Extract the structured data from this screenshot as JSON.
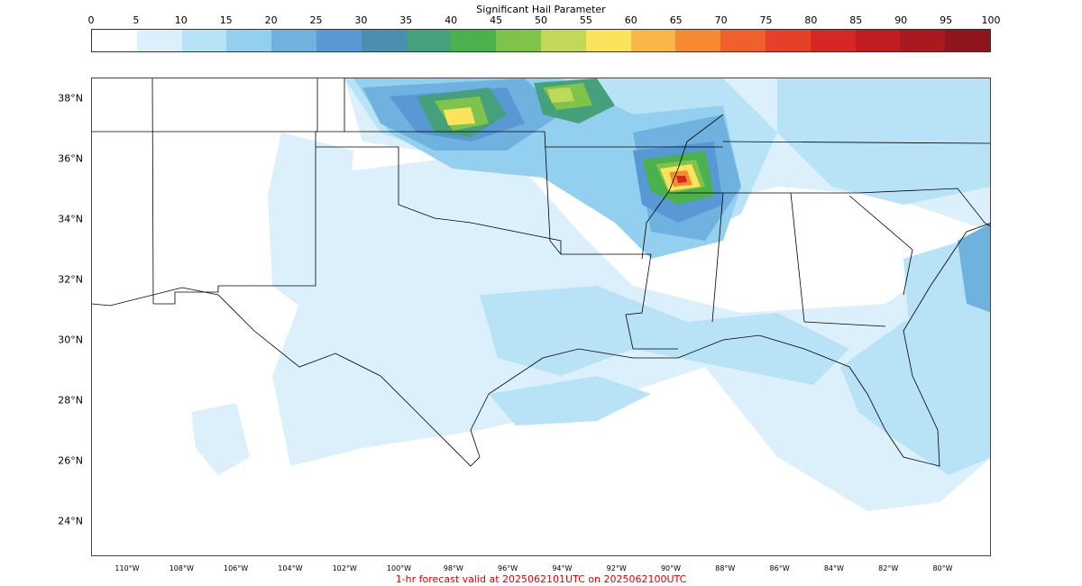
{
  "colorbar": {
    "title": "Significant Hail Parameter",
    "ticks": [
      "0",
      "5",
      "10",
      "15",
      "20",
      "25",
      "30",
      "35",
      "40",
      "45",
      "50",
      "55",
      "60",
      "65",
      "70",
      "75",
      "80",
      "85",
      "90",
      "95",
      "100"
    ],
    "colors": [
      "#ffffff",
      "#dcf0fb",
      "#b8e2f6",
      "#93d0f0",
      "#6fb2e0",
      "#5898d4",
      "#4a8fb0",
      "#45a07c",
      "#49b24c",
      "#80c34a",
      "#c2d858",
      "#fbe45c",
      "#f9b649",
      "#f68a33",
      "#f0602c",
      "#e54028",
      "#d62626",
      "#c01d23",
      "#a81a20",
      "#8e151b"
    ]
  },
  "map": {
    "lat_labels": [
      "38°N",
      "36°N",
      "34°N",
      "32°N",
      "30°N",
      "28°N",
      "26°N",
      "24°N"
    ],
    "lon_labels": [
      "110°W",
      "108°W",
      "106°W",
      "104°W",
      "102°W",
      "100°W",
      "98°W",
      "96°W",
      "94°W",
      "92°W",
      "90°W",
      "88°W",
      "86°W",
      "84°W",
      "82°W",
      "80°W"
    ]
  },
  "footer": "1-hr forecast valid at 2025062101UTC on 2025062100UTC"
}
